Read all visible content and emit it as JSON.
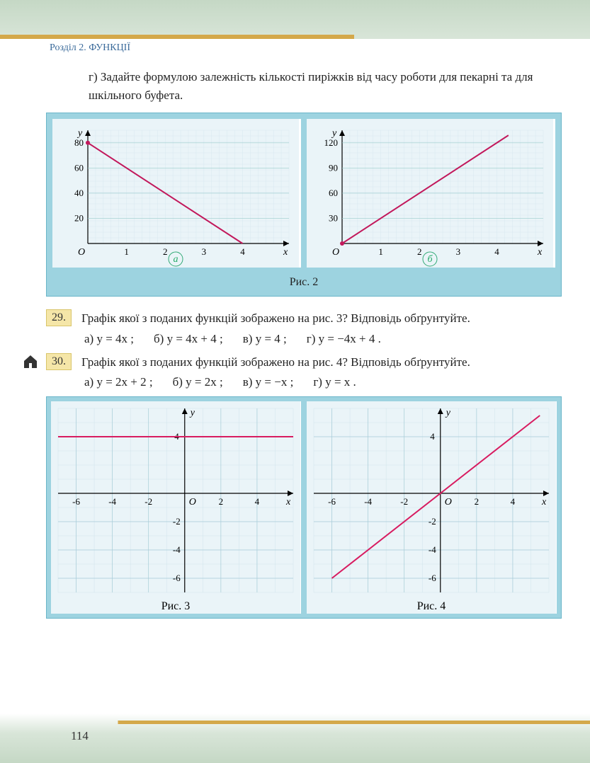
{
  "section_header": "Розділ 2. ФУНКЦІЇ",
  "intro_text": "г) Задайте формулою залежність кількості пиріжків від часу роботи для пекарні та для шкільного буфета.",
  "fig2": {
    "caption": "Рис. 2",
    "left": {
      "label": "a",
      "type": "line",
      "axis_x_label": "x",
      "axis_y_label": "y",
      "origin_label": "O",
      "x_ticks": [
        1,
        2,
        3,
        4
      ],
      "y_ticks": [
        20,
        40,
        60,
        80
      ],
      "xlim": [
        0,
        5.2
      ],
      "ylim": [
        0,
        90
      ],
      "points": [
        [
          0,
          80
        ],
        [
          4,
          0
        ]
      ],
      "line_color": "#c2185b",
      "line_width": 2,
      "grid_minor": "#d8e8f0",
      "grid_major": "#9cc",
      "bg": "#eaf4f8"
    },
    "right": {
      "label": "б",
      "type": "line",
      "axis_x_label": "x",
      "axis_y_label": "y",
      "origin_label": "O",
      "x_ticks": [
        1,
        2,
        3,
        4
      ],
      "y_ticks": [
        30,
        60,
        90,
        120
      ],
      "xlim": [
        0,
        5.2
      ],
      "ylim": [
        0,
        135
      ],
      "points": [
        [
          0,
          0
        ],
        [
          4.3,
          129
        ]
      ],
      "line_color": "#c2185b",
      "line_width": 2,
      "grid_minor": "#d8e8f0",
      "grid_major": "#9cc",
      "bg": "#eaf4f8"
    }
  },
  "p29": {
    "num": "29.",
    "text": "Графік якої з поданих функцій зображено на рис. 3? Відповідь обґрунтуйте.",
    "options": {
      "a": "а)  y = 4x ;",
      "b": "б)  y = 4x + 4 ;",
      "v": "в)  y = 4 ;",
      "g": "г)  y = −4x + 4 ."
    }
  },
  "p30": {
    "num": "30.",
    "text": "Графік якої з поданих функцій зображено на рис. 4? Відповідь обґрунтуйте.",
    "options": {
      "a": "а)  y = 2x + 2 ;",
      "b": "б)  y = 2x ;",
      "v": "в)  y = −x ;",
      "g": "г)  y = x ."
    }
  },
  "fig34": {
    "left": {
      "caption": "Рис. 3",
      "type": "line",
      "axis_x_label": "x",
      "axis_y_label": "y",
      "origin_label": "O",
      "x_ticks": [
        -6,
        -4,
        -2,
        2,
        4
      ],
      "y_ticks": [
        4,
        -2,
        -4,
        -6
      ],
      "xlim": [
        -7,
        6
      ],
      "ylim": [
        -7,
        6
      ],
      "points": [
        [
          -7,
          4
        ],
        [
          6,
          4
        ]
      ],
      "line_color": "#d81b60",
      "line_width": 2,
      "grid_minor": "#d0e4ec",
      "grid_major": "#a8cdd8",
      "bg": "#eaf4f8"
    },
    "right": {
      "caption": "Рис. 4",
      "type": "line",
      "axis_x_label": "x",
      "axis_y_label": "y",
      "origin_label": "O",
      "x_ticks": [
        -6,
        -4,
        -2,
        2,
        4
      ],
      "y_ticks": [
        4,
        -2,
        -4,
        -6
      ],
      "xlim": [
        -7,
        6
      ],
      "ylim": [
        -7,
        6
      ],
      "points": [
        [
          -6,
          -6
        ],
        [
          5.5,
          5.5
        ]
      ],
      "line_color": "#d81b60",
      "line_width": 2,
      "grid_minor": "#d0e4ec",
      "grid_major": "#a8cdd8",
      "bg": "#eaf4f8"
    }
  },
  "page_number": "114"
}
